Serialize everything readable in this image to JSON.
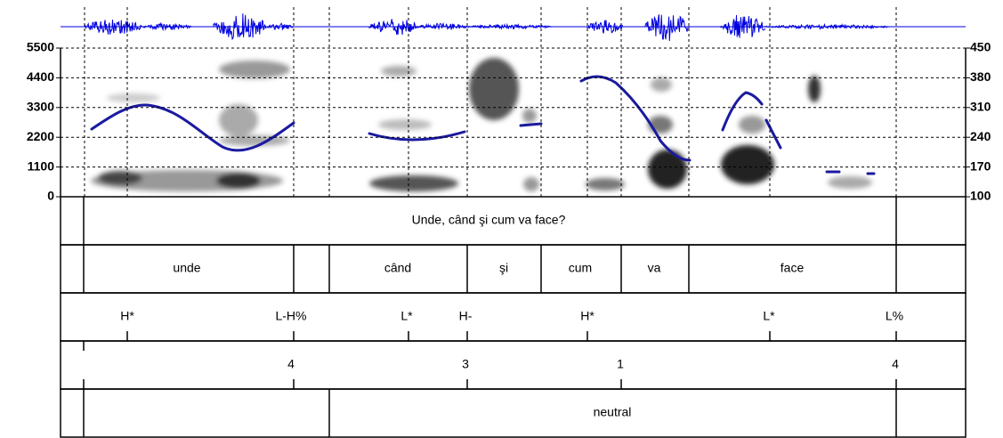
{
  "spectrogram": {
    "ylim": [
      0,
      5500
    ],
    "yticks": [
      0,
      1100,
      2200,
      3300,
      4400,
      5500
    ],
    "y2lim": [
      100,
      450
    ],
    "y2ticks": [
      100,
      170,
      240,
      310,
      380,
      450
    ]
  },
  "tiers": [
    {
      "labels": [
        "Unde, când şi cum va face?"
      ]
    },
    {
      "labels": [
        "unde",
        "când",
        "şi",
        "cum",
        "va",
        "face"
      ]
    },
    {
      "labels": [
        "H*",
        "L-H%",
        "L*",
        "H-",
        "H*",
        "L*",
        "L%"
      ]
    },
    {
      "labels": [
        4,
        3,
        1,
        4
      ]
    },
    {
      "labels": [
        "neutral"
      ]
    }
  ]
}
